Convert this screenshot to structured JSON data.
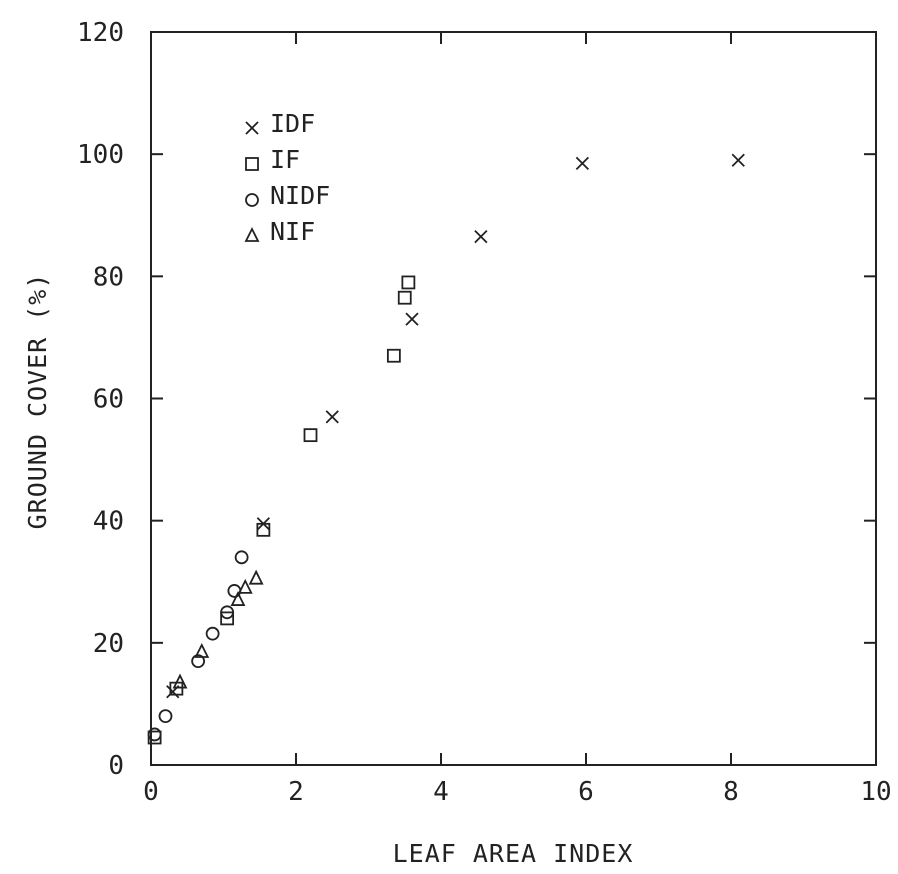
{
  "chart_data": {
    "type": "scatter",
    "title": "",
    "xlabel": "LEAF AREA INDEX",
    "ylabel": "GROUND COVER (%)",
    "xlim": [
      0,
      10
    ],
    "ylim": [
      0,
      120
    ],
    "xticks": [
      0,
      2,
      4,
      6,
      8,
      10
    ],
    "yticks": [
      0,
      20,
      40,
      60,
      80,
      100,
      120
    ],
    "xtick_labels": [
      "0",
      "2",
      "4",
      "6",
      "8",
      "10"
    ],
    "ytick_labels": [
      "0",
      "20",
      "40",
      "60",
      "80",
      "100",
      "120"
    ],
    "grid": false,
    "legend_position": "top-left",
    "series": [
      {
        "name": "IDF",
        "marker": "x",
        "points": [
          [
            0.3,
            12
          ],
          [
            1.55,
            39.5
          ],
          [
            2.5,
            57
          ],
          [
            3.6,
            73
          ],
          [
            4.55,
            86.5
          ],
          [
            5.95,
            98.5
          ],
          [
            8.1,
            99
          ]
        ]
      },
      {
        "name": "IF",
        "marker": "square",
        "points": [
          [
            0.05,
            4.5
          ],
          [
            0.35,
            12.5
          ],
          [
            1.05,
            24
          ],
          [
            1.55,
            38.5
          ],
          [
            2.2,
            54
          ],
          [
            3.35,
            67
          ],
          [
            3.5,
            76.5
          ],
          [
            3.55,
            79
          ]
        ]
      },
      {
        "name": "NIDF",
        "marker": "circle",
        "points": [
          [
            0.05,
            5
          ],
          [
            0.2,
            8
          ],
          [
            0.65,
            17
          ],
          [
            0.85,
            21.5
          ],
          [
            1.05,
            25
          ],
          [
            1.15,
            28.5
          ],
          [
            1.25,
            34
          ]
        ]
      },
      {
        "name": "NIF",
        "marker": "triangle",
        "points": [
          [
            0.4,
            13.5
          ],
          [
            0.7,
            18.5
          ],
          [
            1.2,
            27
          ],
          [
            1.3,
            29
          ],
          [
            1.45,
            30.5
          ]
        ]
      }
    ]
  }
}
